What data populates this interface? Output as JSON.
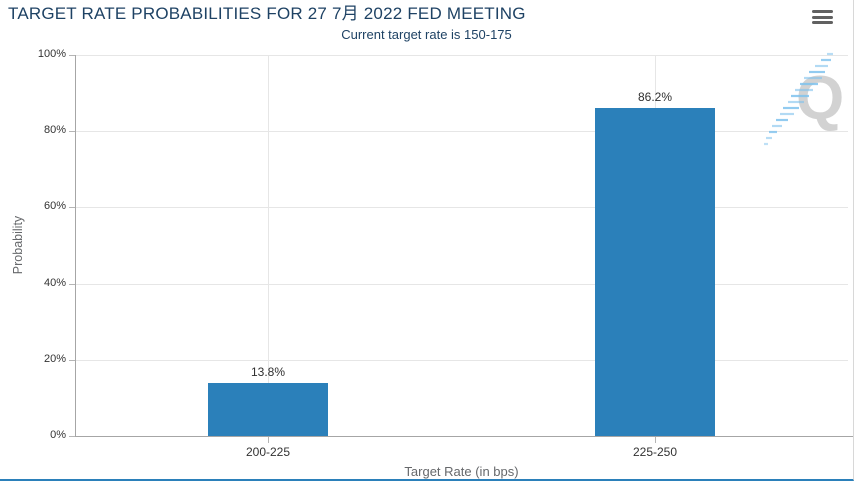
{
  "header": {
    "menu_icon": "hamburger-icon"
  },
  "watermark": {
    "letter": "Q",
    "letter_color": "#d2d2d2",
    "swoosh_color": "#7fc3ee"
  },
  "colors": {
    "bar": "#2b80ba",
    "title_text": "#1e4264",
    "tick_text": "#333333",
    "axis_title_text": "#66686b",
    "gridline": "#e6e6e6",
    "axis_line": "#a6a6a6",
    "tick_mark": "#b5b5b5",
    "bottom_accent": "#2b80ba",
    "menu_icon": "#616161"
  },
  "chart_data": {
    "type": "bar",
    "title": "TARGET RATE PROBABILITIES FOR 27 7月 2022 FED MEETING",
    "subtitle": "Current target rate is 150-175",
    "categories": [
      "200-225",
      "225-250"
    ],
    "values": [
      13.8,
      86.2
    ],
    "data_labels": [
      "13.8%",
      "86.2%"
    ],
    "xlabel": "Target Rate (in bps)",
    "ylabel": "Probability",
    "ylim": [
      0,
      100
    ],
    "ytick_step": 20,
    "ytick_suffix": "%",
    "grid": true,
    "legend_position": "none",
    "bar_color": "#2b80ba"
  }
}
